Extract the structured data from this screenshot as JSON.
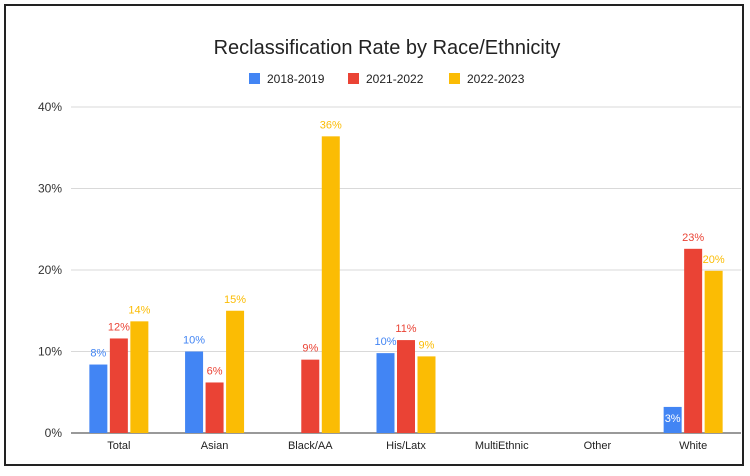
{
  "chart_data": {
    "type": "bar",
    "title": "Reclassification Rate by Race/Ethnicity",
    "categories": [
      "Total",
      "Asian",
      "Black/AA",
      "His/Latx",
      "MultiEthnic",
      "Other",
      "White"
    ],
    "y_ticks": [
      "0%",
      "10%",
      "20%",
      "30%",
      "40%"
    ],
    "ylim": [
      0,
      40
    ],
    "grid": true,
    "legend_position": "top",
    "series": [
      {
        "name": "2018-2019",
        "color": "#4285f4",
        "values": [
          8.4,
          10,
          null,
          9.8,
          null,
          null,
          3.2
        ],
        "labels": [
          "8%",
          "10%",
          "",
          "10%",
          "",
          "",
          "3%"
        ]
      },
      {
        "name": "2021-2022",
        "color": "#ea4335",
        "values": [
          11.6,
          6.2,
          9,
          11.4,
          null,
          null,
          22.6
        ],
        "labels": [
          "12%",
          "6%",
          "9%",
          "11%",
          "",
          "",
          "23%"
        ]
      },
      {
        "name": "2022-2023",
        "color": "#fbbc04",
        "values": [
          13.7,
          15,
          36.4,
          9.4,
          null,
          null,
          19.9
        ],
        "labels": [
          "14%",
          "15%",
          "36%",
          "9%",
          "",
          "",
          "20%"
        ]
      }
    ]
  }
}
